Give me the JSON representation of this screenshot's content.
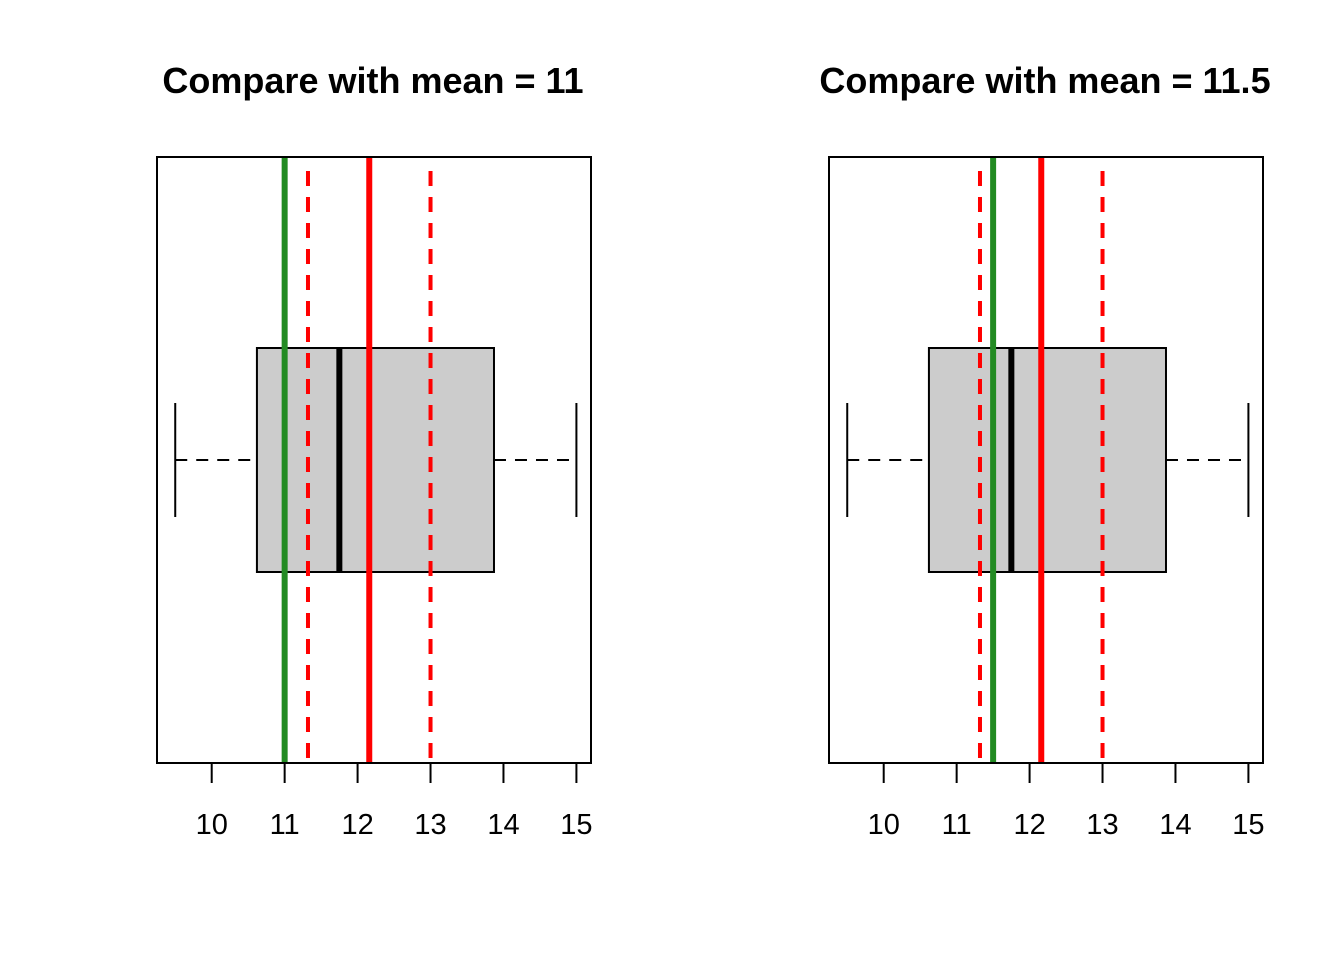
{
  "chart_data": [
    {
      "type": "boxplot",
      "title": "Compare with mean = 11",
      "orientation": "horizontal",
      "xlim": [
        9.25,
        15.2
      ],
      "xticks": [
        10,
        11,
        12,
        13,
        14,
        15
      ],
      "xtick_labels": [
        "10",
        "11",
        "12",
        "13",
        "14",
        "15"
      ],
      "box": {
        "whisker_min": 9.5,
        "q1": 10.62,
        "median": 11.75,
        "q3": 13.87,
        "whisker_max": 15.0
      },
      "reference_lines": [
        {
          "role": "hypothesized mean",
          "value": 11.0,
          "color": "#228b22",
          "style": "solid"
        },
        {
          "role": "sample mean",
          "value": 12.16,
          "color": "#ff0000",
          "style": "solid"
        },
        {
          "role": "lower confidence bound",
          "value": 11.32,
          "color": "#ff0000",
          "style": "dashed"
        },
        {
          "role": "upper confidence bound",
          "value": 13.0,
          "color": "#ff0000",
          "style": "dashed"
        }
      ],
      "box_fill": "#cccccc",
      "grid": false
    },
    {
      "type": "boxplot",
      "title": "Compare with mean = 11.5",
      "orientation": "horizontal",
      "xlim": [
        9.25,
        15.2
      ],
      "xticks": [
        10,
        11,
        12,
        13,
        14,
        15
      ],
      "xtick_labels": [
        "10",
        "11",
        "12",
        "13",
        "14",
        "15"
      ],
      "box": {
        "whisker_min": 9.5,
        "q1": 10.62,
        "median": 11.75,
        "q3": 13.87,
        "whisker_max": 15.0
      },
      "reference_lines": [
        {
          "role": "hypothesized mean",
          "value": 11.5,
          "color": "#228b22",
          "style": "solid"
        },
        {
          "role": "sample mean",
          "value": 12.16,
          "color": "#ff0000",
          "style": "solid"
        },
        {
          "role": "lower confidence bound",
          "value": 11.32,
          "color": "#ff0000",
          "style": "dashed"
        },
        {
          "role": "upper confidence bound",
          "value": 13.0,
          "color": "#ff0000",
          "style": "dashed"
        }
      ],
      "box_fill": "#cccccc",
      "grid": false
    }
  ]
}
